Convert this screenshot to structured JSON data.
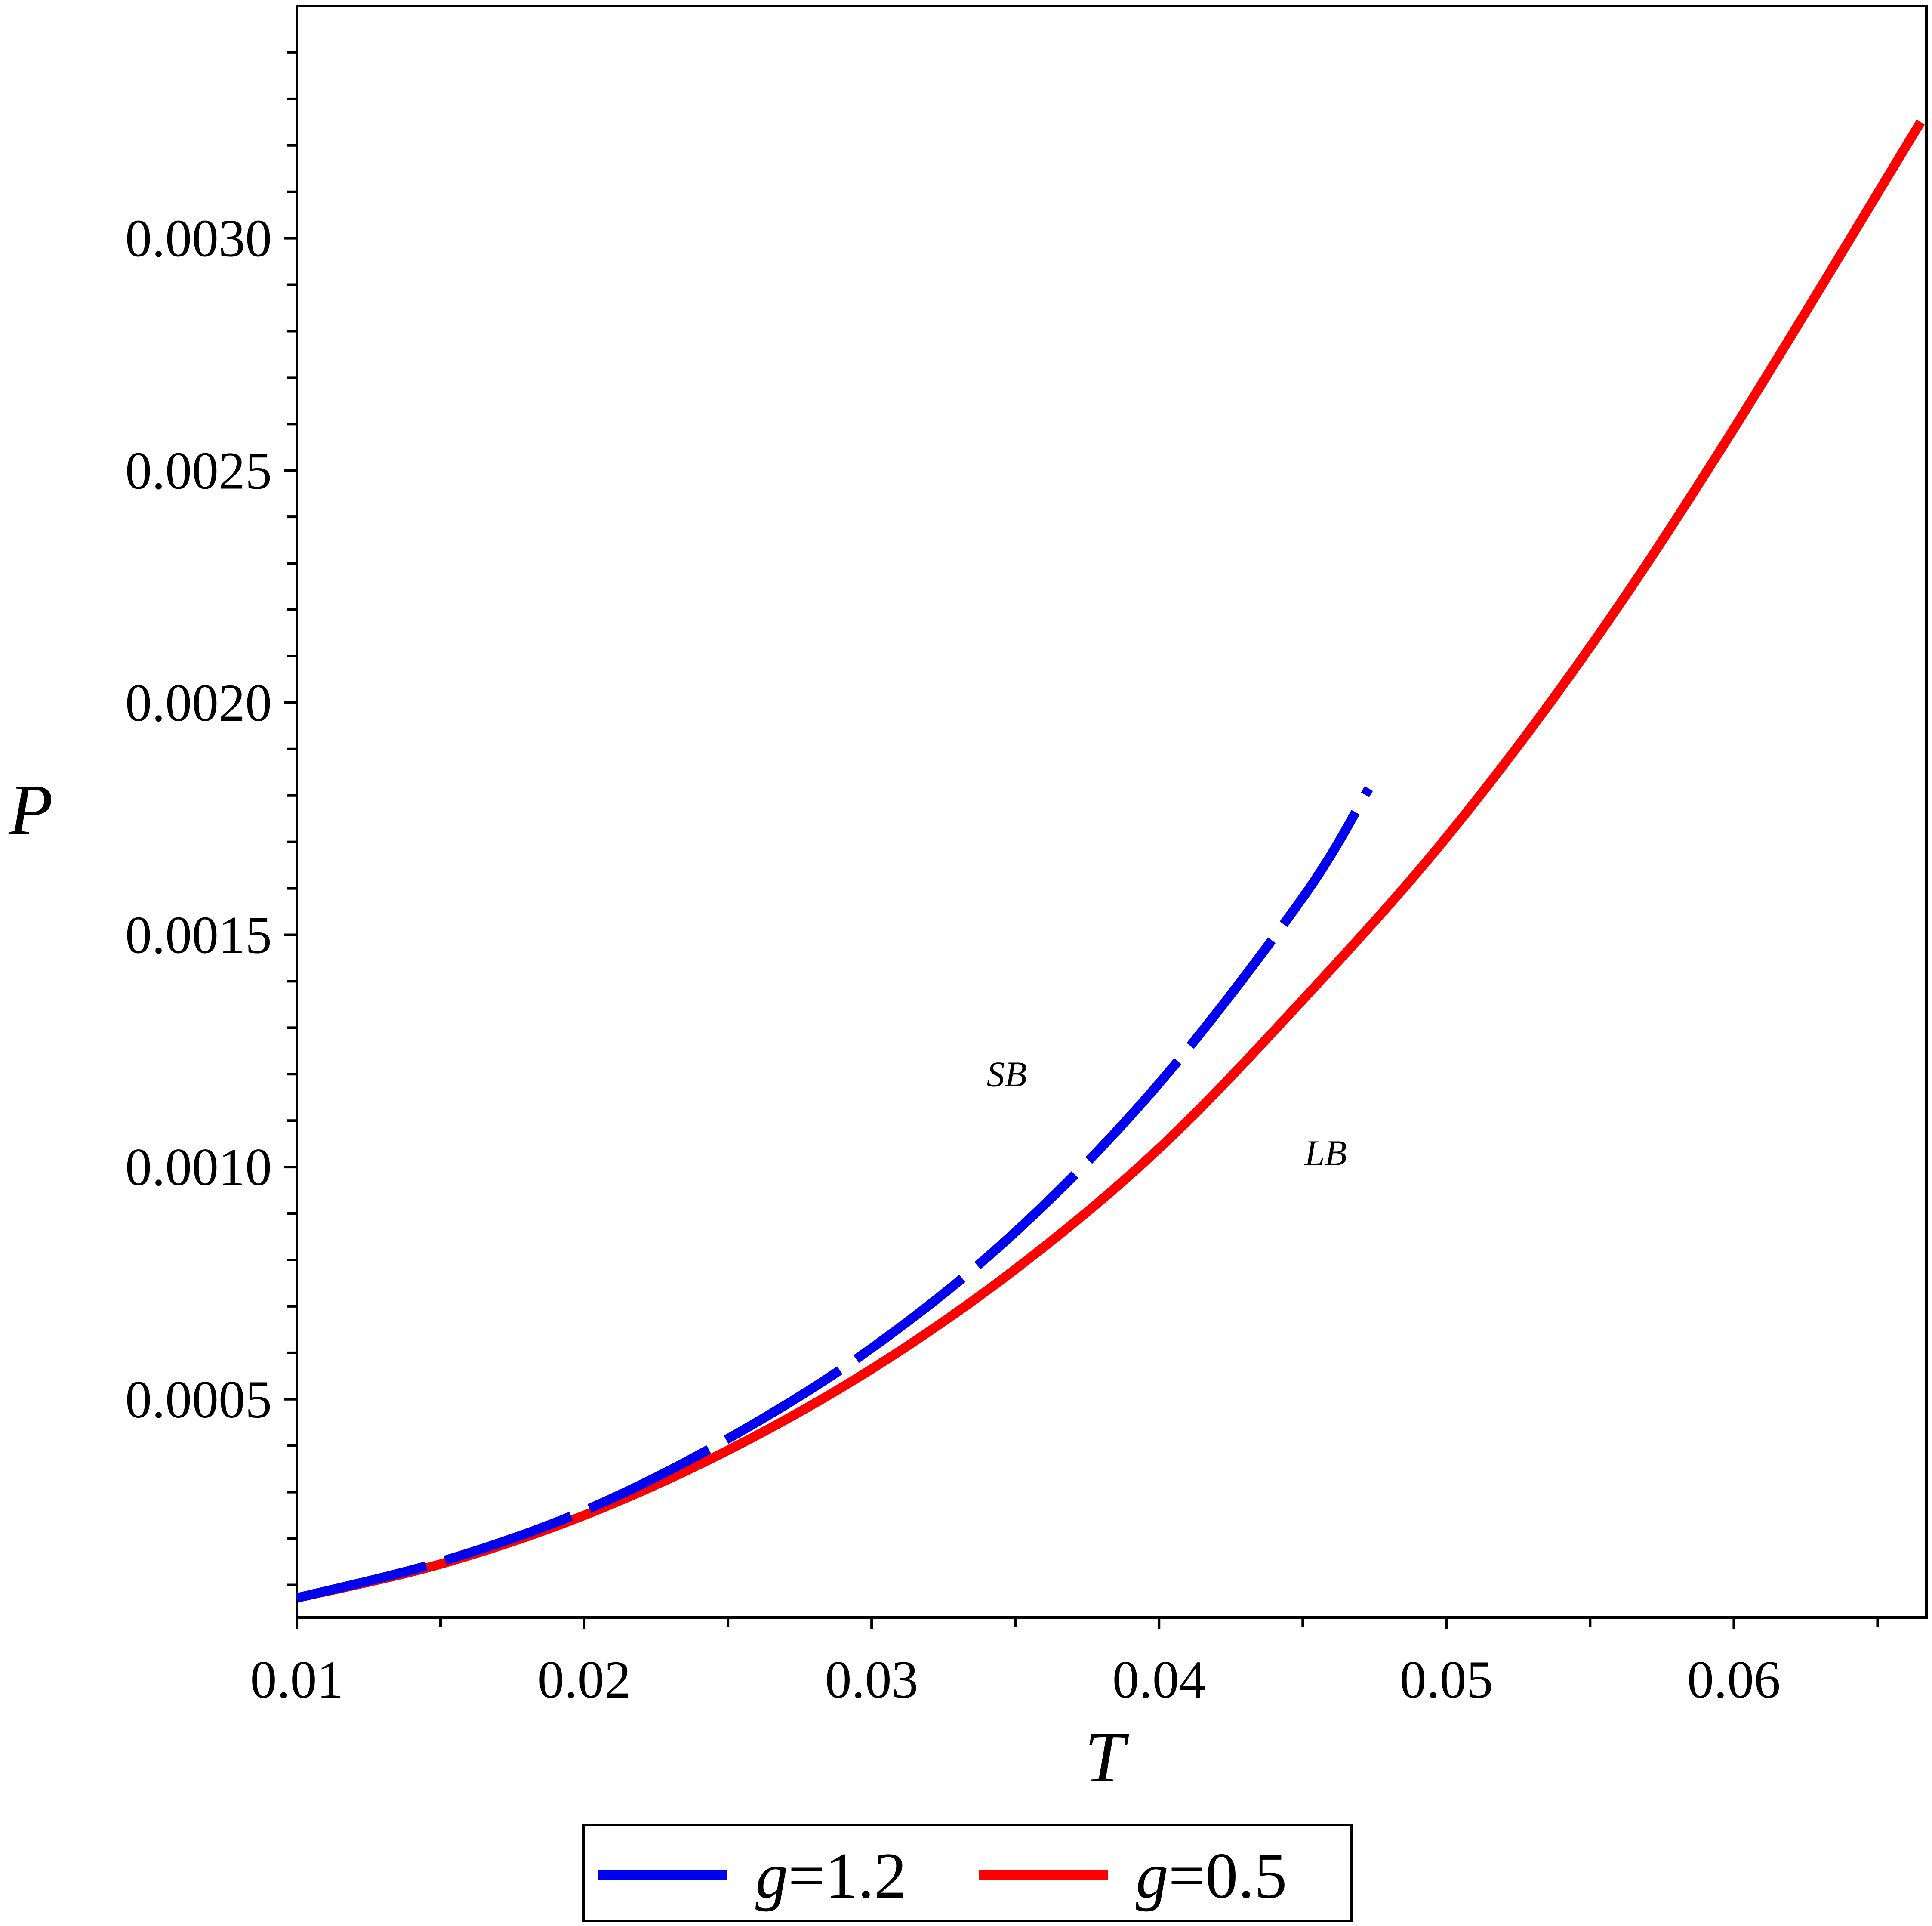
{
  "chart_data": {
    "type": "line",
    "xlabel": "T",
    "ylabel": "P",
    "xlim": [
      0.01,
      0.0667
    ],
    "ylim": [
      3e-05,
      0.0035
    ],
    "x_ticks": [
      "0.01",
      "0.02",
      "0.03",
      "0.04",
      "0.05",
      "0.06"
    ],
    "y_ticks": [
      "0.0005",
      "0.0010",
      "0.0015",
      "0.0020",
      "0.0025",
      "0.0030"
    ],
    "grid": false,
    "legend_position": "bottom",
    "annotations": [
      {
        "text": "SB",
        "x": 0.0347,
        "y": 0.0012
      },
      {
        "text": "LB",
        "x": 0.0458,
        "y": 0.00103
      }
    ],
    "series": [
      {
        "name": "g=1.2",
        "legend_symbol": "g",
        "legend_value": "=1.2",
        "color": "#0000ee",
        "style": "dashed",
        "x": [
          0.01,
          0.015,
          0.02,
          0.025,
          0.03,
          0.035,
          0.04,
          0.045,
          0.0473
        ],
        "y": [
          7.2e-05,
          0.00015,
          0.00026,
          0.000415,
          0.00061,
          0.00086,
          0.00118,
          0.00158,
          0.001815
        ]
      },
      {
        "name": "g=0.5",
        "legend_symbol": "g",
        "legend_value": "=0.5",
        "color": "#ff0000",
        "style": "solid",
        "x": [
          0.01,
          0.015,
          0.02,
          0.025,
          0.03,
          0.035,
          0.04,
          0.045,
          0.05,
          0.055,
          0.06,
          0.0665
        ],
        "y": [
          7.2e-05,
          0.000145,
          0.00025,
          0.00039,
          0.000565,
          0.00078,
          0.00104,
          0.00136,
          0.00171,
          0.00212,
          0.00259,
          0.00325
        ]
      }
    ]
  }
}
